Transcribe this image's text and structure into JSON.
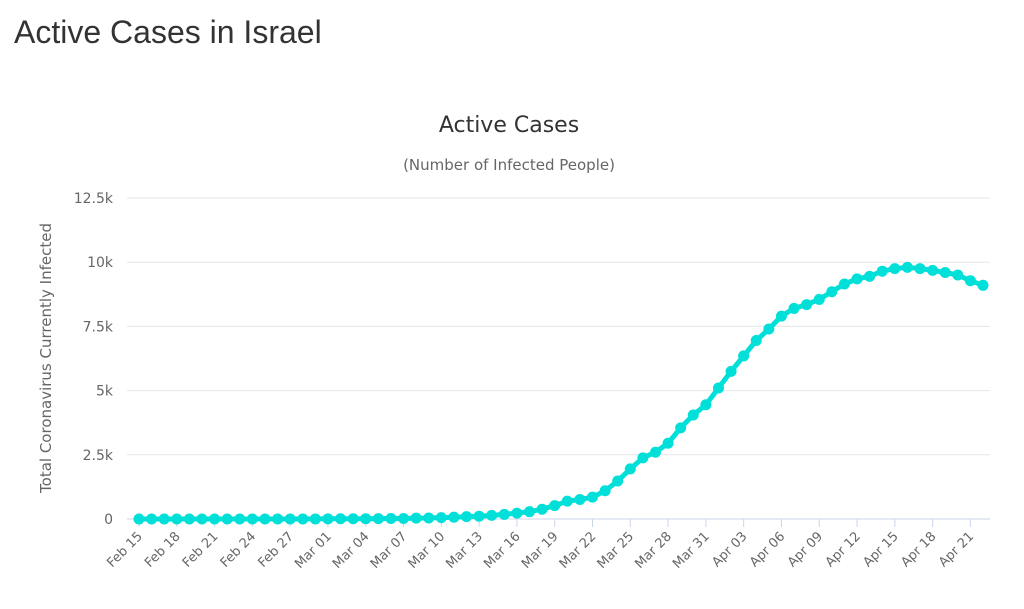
{
  "page": {
    "title": "Active Cases in Israel"
  },
  "chart_data": {
    "type": "line",
    "title": "Active Cases",
    "subtitle": "(Number of Infected People)",
    "ylabel": "Total Coronavirus Currently Infected",
    "xlabel": "",
    "ylim": [
      0,
      12500
    ],
    "yticks": [
      0,
      2500,
      5000,
      7500,
      10000,
      12500
    ],
    "ytick_labels": [
      "0",
      "2.5k",
      "5k",
      "7.5k",
      "10k",
      "12.5k"
    ],
    "xtick_labels": [
      "Feb 15",
      "Feb 18",
      "Feb 21",
      "Feb 24",
      "Feb 27",
      "Mar 01",
      "Mar 04",
      "Mar 07",
      "Mar 10",
      "Mar 13",
      "Mar 16",
      "Mar 19",
      "Mar 22",
      "Mar 25",
      "Mar 28",
      "Mar 31",
      "Apr 03",
      "Apr 06",
      "Apr 09",
      "Apr 12",
      "Apr 15",
      "Apr 18",
      "Apr 21"
    ],
    "grid": true,
    "legend": "none",
    "colors": {
      "series": "#00dfd8",
      "grid": "#e6e6e6",
      "axis": "#ccd6eb",
      "text": "#666666",
      "title": "#333333"
    },
    "x": [
      "Feb 15",
      "Feb 16",
      "Feb 17",
      "Feb 18",
      "Feb 19",
      "Feb 20",
      "Feb 21",
      "Feb 22",
      "Feb 23",
      "Feb 24",
      "Feb 25",
      "Feb 26",
      "Feb 27",
      "Feb 28",
      "Feb 29",
      "Mar 01",
      "Mar 02",
      "Mar 03",
      "Mar 04",
      "Mar 05",
      "Mar 06",
      "Mar 07",
      "Mar 08",
      "Mar 09",
      "Mar 10",
      "Mar 11",
      "Mar 12",
      "Mar 13",
      "Mar 14",
      "Mar 15",
      "Mar 16",
      "Mar 17",
      "Mar 18",
      "Mar 19",
      "Mar 20",
      "Mar 21",
      "Mar 22",
      "Mar 23",
      "Mar 24",
      "Mar 25",
      "Mar 26",
      "Mar 27",
      "Mar 28",
      "Mar 29",
      "Mar 30",
      "Mar 31",
      "Apr 01",
      "Apr 02",
      "Apr 03",
      "Apr 04",
      "Apr 05",
      "Apr 06",
      "Apr 07",
      "Apr 08",
      "Apr 09",
      "Apr 10",
      "Apr 11",
      "Apr 12",
      "Apr 13",
      "Apr 14",
      "Apr 15",
      "Apr 16",
      "Apr 17",
      "Apr 18",
      "Apr 19",
      "Apr 20",
      "Apr 21",
      "Apr 22"
    ],
    "series": [
      {
        "values": [
          0,
          0,
          0,
          0,
          0,
          0,
          0,
          0,
          0,
          0,
          0,
          0,
          1,
          1,
          2,
          7,
          8,
          10,
          12,
          15,
          19,
          21,
          36,
          40,
          55,
          71,
          91,
          109,
          140,
          178,
          230,
          285,
          380,
          520,
          695,
          760,
          850,
          1100,
          1480,
          1950,
          2380,
          2600,
          2950,
          3550,
          4050,
          4450,
          5100,
          5750,
          6350,
          6950,
          7400,
          7900,
          8200,
          8350,
          8550,
          8850,
          9150,
          9350,
          9450,
          9650,
          9750,
          9800,
          9750,
          9680,
          9600,
          9500,
          9280,
          9100
        ]
      }
    ]
  }
}
